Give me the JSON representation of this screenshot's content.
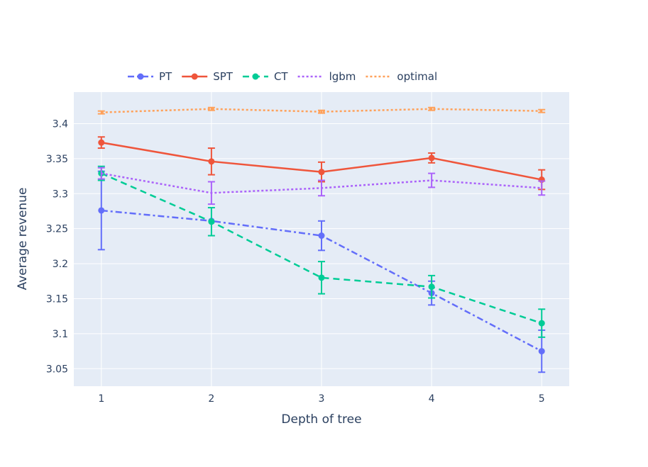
{
  "chart_data": {
    "type": "line",
    "title": "",
    "xlabel": "Depth of tree",
    "ylabel": "Average revenue",
    "x": [
      1,
      2,
      3,
      4,
      5
    ],
    "x_ticks": [
      "1",
      "2",
      "3",
      "4",
      "5"
    ],
    "xlim": [
      0.75,
      5.25
    ],
    "ylim": [
      3.025,
      3.445
    ],
    "y_ticks": [
      3.05,
      3.1,
      3.15,
      3.2,
      3.25,
      3.3,
      3.35,
      3.4
    ],
    "y_tick_labels": [
      "3.05",
      "3.1",
      "3.15",
      "3.2",
      "3.25",
      "3.3",
      "3.35",
      "3.4"
    ],
    "grid": true,
    "legend_position": "top",
    "plot_background": "#e5ecf6",
    "series": [
      {
        "name": "PT",
        "color": "#636efa",
        "dash": "dashdot",
        "markers": true,
        "values": [
          3.276,
          3.261,
          3.24,
          3.158,
          3.075
        ],
        "errors": [
          0.056,
          0.0,
          0.021,
          0.017,
          0.03
        ]
      },
      {
        "name": "SPT",
        "color": "#ef553b",
        "dash": "solid",
        "markers": true,
        "values": [
          3.373,
          3.346,
          3.331,
          3.351,
          3.32
        ],
        "errors": [
          0.008,
          0.019,
          0.014,
          0.007,
          0.014
        ]
      },
      {
        "name": "CT",
        "color": "#00cc96",
        "dash": "dash",
        "markers": true,
        "values": [
          3.329,
          3.26,
          3.18,
          3.167,
          3.115
        ],
        "errors": [
          0.01,
          0.02,
          0.023,
          0.016,
          0.02
        ]
      },
      {
        "name": "lgbm",
        "color": "#ab63fa",
        "dash": "dot",
        "markers": false,
        "values": [
          3.329,
          3.301,
          3.308,
          3.319,
          3.308
        ],
        "errors": [
          0.008,
          0.016,
          0.011,
          0.01,
          0.01
        ]
      },
      {
        "name": "optimal",
        "color": "#ffa15a",
        "dash": "dot",
        "markers": false,
        "values": [
          3.416,
          3.421,
          3.417,
          3.421,
          3.418
        ],
        "errors": [
          0.002,
          0.002,
          0.002,
          0.002,
          0.002
        ]
      }
    ]
  }
}
